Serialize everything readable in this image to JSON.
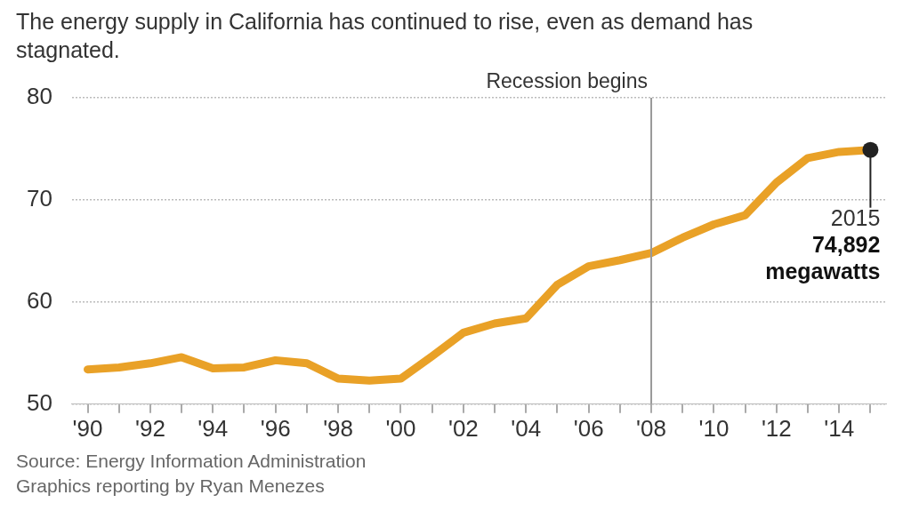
{
  "chart_data": {
    "type": "line",
    "title": "The energy supply in California has continued to rise, even as demand has stagnated.",
    "x": [
      1990,
      1991,
      1992,
      1993,
      1994,
      1995,
      1996,
      1997,
      1998,
      1999,
      2000,
      2001,
      2002,
      2003,
      2004,
      2005,
      2006,
      2007,
      2008,
      2009,
      2010,
      2011,
      2012,
      2013,
      2014,
      2015
    ],
    "series": [
      {
        "color": "#e9a127",
        "values": [
          53.4,
          53.6,
          54.0,
          54.6,
          53.5,
          53.6,
          54.3,
          54.0,
          52.5,
          52.3,
          52.5,
          54.7,
          57.0,
          57.9,
          58.4,
          61.7,
          63.5,
          64.1,
          64.8,
          66.3,
          67.6,
          68.5,
          71.7,
          74.1,
          74.7,
          74.892
        ]
      }
    ],
    "xlim": [
      1989.5,
      2015.5
    ],
    "xticks": [
      {
        "value": 1990,
        "label": "'90"
      },
      {
        "value": 1991,
        "label": null
      },
      {
        "value": 1992,
        "label": "'92"
      },
      {
        "value": 1993,
        "label": null
      },
      {
        "value": 1994,
        "label": "'94"
      },
      {
        "value": 1995,
        "label": null
      },
      {
        "value": 1996,
        "label": "'96"
      },
      {
        "value": 1997,
        "label": null
      },
      {
        "value": 1998,
        "label": "'98"
      },
      {
        "value": 1999,
        "label": null
      },
      {
        "value": 2000,
        "label": "'00"
      },
      {
        "value": 2001,
        "label": null
      },
      {
        "value": 2002,
        "label": "'02"
      },
      {
        "value": 2003,
        "label": null
      },
      {
        "value": 2004,
        "label": "'04"
      },
      {
        "value": 2005,
        "label": null
      },
      {
        "value": 2006,
        "label": "'06"
      },
      {
        "value": 2007,
        "label": null
      },
      {
        "value": 2008,
        "label": "'08"
      },
      {
        "value": 2009,
        "label": null
      },
      {
        "value": 2010,
        "label": "'10"
      },
      {
        "value": 2011,
        "label": null
      },
      {
        "value": 2012,
        "label": "'12"
      },
      {
        "value": 2013,
        "label": null
      },
      {
        "value": 2014,
        "label": "'14"
      },
      {
        "value": 2015,
        "label": null
      }
    ],
    "ylim": [
      50,
      80
    ],
    "yticks": [
      50,
      60,
      70,
      80
    ],
    "grid": "y",
    "legend": false,
    "marker": "none",
    "line_style": "solid",
    "ref_lines": [
      {
        "axis": "x",
        "value": 2008,
        "label": "Recession begins",
        "color": "#999999"
      }
    ],
    "annotations": [
      {
        "text": "2015\n74,892\nmegawatts",
        "x": 2015,
        "y": 74.892
      },
      "Source: Energy Information Administration",
      "Graphics reporting by Ryan Menezes"
    ]
  }
}
